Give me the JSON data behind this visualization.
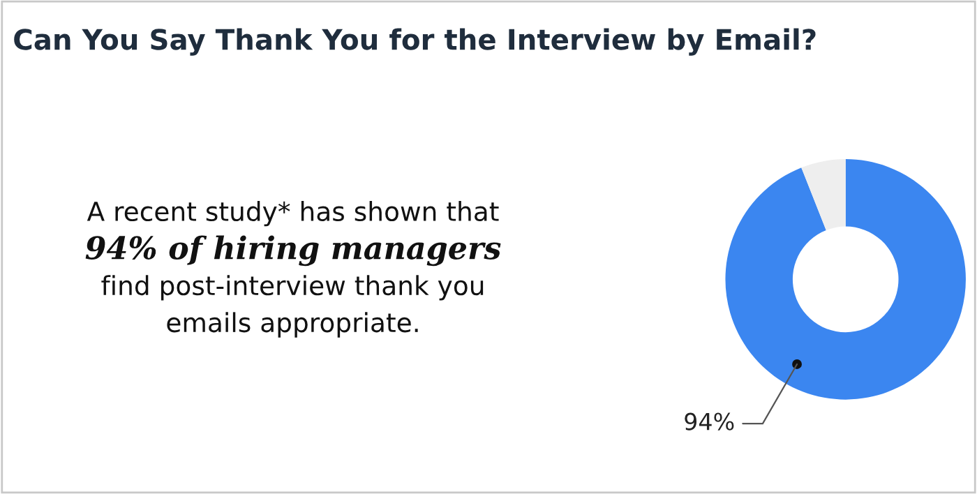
{
  "chart_data": {
    "type": "donut",
    "title": "Can You Say Thank You for the Interview by Email?",
    "categories": [
      null,
      null
    ],
    "values": [
      94,
      6
    ],
    "colors": [
      "#3b86f0",
      "#eeeeee"
    ],
    "value_labels": [
      "94%",
      null
    ],
    "annotations": [
      "A recent study* has shown that",
      "94% of hiring managers",
      "find post-interview thank you",
      "emails appropriate."
    ]
  }
}
